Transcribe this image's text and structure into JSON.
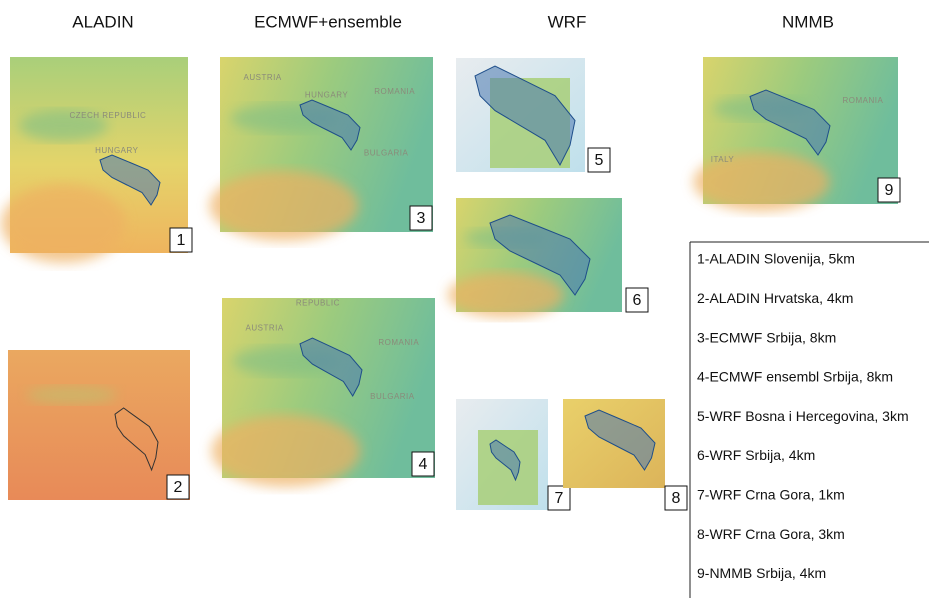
{
  "headers": [
    "ALADIN",
    "ECMWF+ensemble",
    "WRF",
    "NMMB"
  ],
  "panels": [
    {
      "number": "1",
      "labels": [
        "CZECH REPUBLIC",
        "HUNGARY"
      ]
    },
    {
      "number": "2",
      "labels": []
    },
    {
      "number": "3",
      "labels": [
        "AUSTRIA",
        "HUNGARY",
        "ROMANIA",
        "BULGARIA"
      ]
    },
    {
      "number": "4",
      "labels": [
        "REPUBLIC",
        "AUSTRIA",
        "ROMANIA",
        "BULGARIA"
      ]
    },
    {
      "number": "5",
      "labels": []
    },
    {
      "number": "6",
      "labels": []
    },
    {
      "number": "7",
      "labels": []
    },
    {
      "number": "8",
      "labels": []
    },
    {
      "number": "9",
      "labels": [
        "ROMANIA",
        "ITALY"
      ]
    }
  ],
  "legend": [
    "1-ALADIN Slovenija, 5km",
    "2-ALADIN Hrvatska, 4km",
    "3-ECMWF Srbija, 8km",
    "4-ECMWF ensembl Srbija, 8km",
    "5-WRF Bosna i Hercegovina, 3km",
    "6-WRF Srbija, 4km",
    "7-WRF Crna Gora, 1km",
    "8-WRF Crna Gora, 3km",
    "9-NMMB Srbija, 4km"
  ]
}
